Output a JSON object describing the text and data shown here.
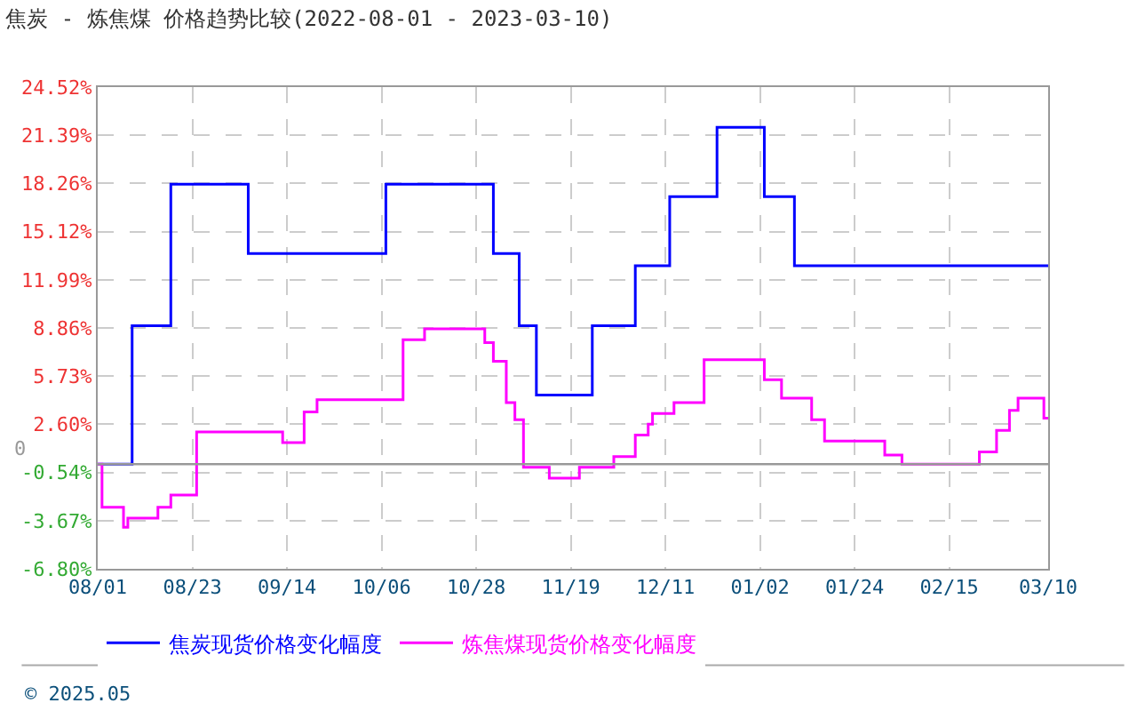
{
  "chart_data": {
    "type": "step",
    "title": "焦炭 - 炼焦煤 价格趋势比较(2022-08-01 - 2023-03-10)",
    "series": [
      {
        "name": "焦炭现货价格变化幅度",
        "color": "#0000ff",
        "x": [
          "2022-08-01",
          "2022-08-09",
          "2022-08-18",
          "2022-09-05",
          "2022-10-07",
          "2022-11-01",
          "2022-11-07",
          "2022-11-11",
          "2022-11-24",
          "2022-12-04",
          "2022-12-12",
          "2022-12-23",
          "2023-01-03",
          "2023-01-10",
          "2023-03-10"
        ],
        "values": [
          0.0,
          9.0,
          18.2,
          13.7,
          18.2,
          13.7,
          9.0,
          4.5,
          9.0,
          12.9,
          17.4,
          21.9,
          17.4,
          12.9,
          12.9
        ]
      },
      {
        "name": "炼焦煤现货价格变化幅度",
        "color": "#ff00ff",
        "x": [
          "2022-08-01",
          "2022-08-02",
          "2022-08-07",
          "2022-08-08",
          "2022-08-15",
          "2022-08-18",
          "2022-08-24",
          "2022-09-13",
          "2022-09-18",
          "2022-09-21",
          "2022-10-11",
          "2022-10-16",
          "2022-10-30",
          "2022-11-01",
          "2022-11-04",
          "2022-11-06",
          "2022-11-08",
          "2022-11-14",
          "2022-11-21",
          "2022-11-29",
          "2022-12-04",
          "2022-12-07",
          "2022-12-08",
          "2022-12-13",
          "2022-12-20",
          "2023-01-03",
          "2023-01-07",
          "2023-01-14",
          "2023-01-17",
          "2023-01-31",
          "2023-02-04",
          "2023-02-22",
          "2023-02-26",
          "2023-03-01",
          "2023-03-03",
          "2023-03-09",
          "2023-03-10"
        ],
        "values": [
          0.0,
          -2.8,
          -4.1,
          -3.5,
          -2.8,
          -2.0,
          2.1,
          1.4,
          3.4,
          4.2,
          8.1,
          8.8,
          7.9,
          6.7,
          4.0,
          2.9,
          -0.2,
          -0.9,
          -0.2,
          0.5,
          1.9,
          2.6,
          3.3,
          4.0,
          6.8,
          5.5,
          4.3,
          2.9,
          1.5,
          0.6,
          0.0,
          0.8,
          2.2,
          3.5,
          4.3,
          3.0,
          3.0
        ]
      }
    ],
    "xlim": [
      "2022-08-01",
      "2023-03-10"
    ],
    "xticks": [
      {
        "value": "2022-08-01",
        "label": "08/01"
      },
      {
        "value": "2022-08-23",
        "label": "08/23"
      },
      {
        "value": "2022-09-14",
        "label": "09/14"
      },
      {
        "value": "2022-10-06",
        "label": "10/06"
      },
      {
        "value": "2022-10-28",
        "label": "10/28"
      },
      {
        "value": "2022-11-19",
        "label": "11/19"
      },
      {
        "value": "2022-12-11",
        "label": "12/11"
      },
      {
        "value": "2023-01-02",
        "label": "01/02"
      },
      {
        "value": "2023-01-24",
        "label": "01/24"
      },
      {
        "value": "2023-02-15",
        "label": "02/15"
      },
      {
        "value": "2023-03-10",
        "label": "03/10"
      }
    ],
    "ylim": [
      -6.8,
      24.52
    ],
    "yticks": [
      {
        "value": -6.8,
        "label": "-6.80%"
      },
      {
        "value": -3.67,
        "label": "-3.67%"
      },
      {
        "value": -0.54,
        "label": "-0.54%"
      },
      {
        "value": 2.6,
        "label": "2.60%"
      },
      {
        "value": 5.73,
        "label": "5.73%"
      },
      {
        "value": 8.86,
        "label": "8.86%"
      },
      {
        "value": 11.99,
        "label": "11.99%"
      },
      {
        "value": 15.12,
        "label": "15.12%"
      },
      {
        "value": 18.26,
        "label": "18.26%"
      },
      {
        "value": 21.39,
        "label": "21.39%"
      },
      {
        "value": 24.52,
        "label": "24.52%"
      }
    ],
    "ref_lines": [
      {
        "axis": "y",
        "value": 0,
        "label": "0",
        "color": "#999999"
      }
    ],
    "grid": true,
    "legend": "bottom",
    "marker": "none",
    "line_style": "solid",
    "annotations": [
      "© 2025.05"
    ]
  }
}
